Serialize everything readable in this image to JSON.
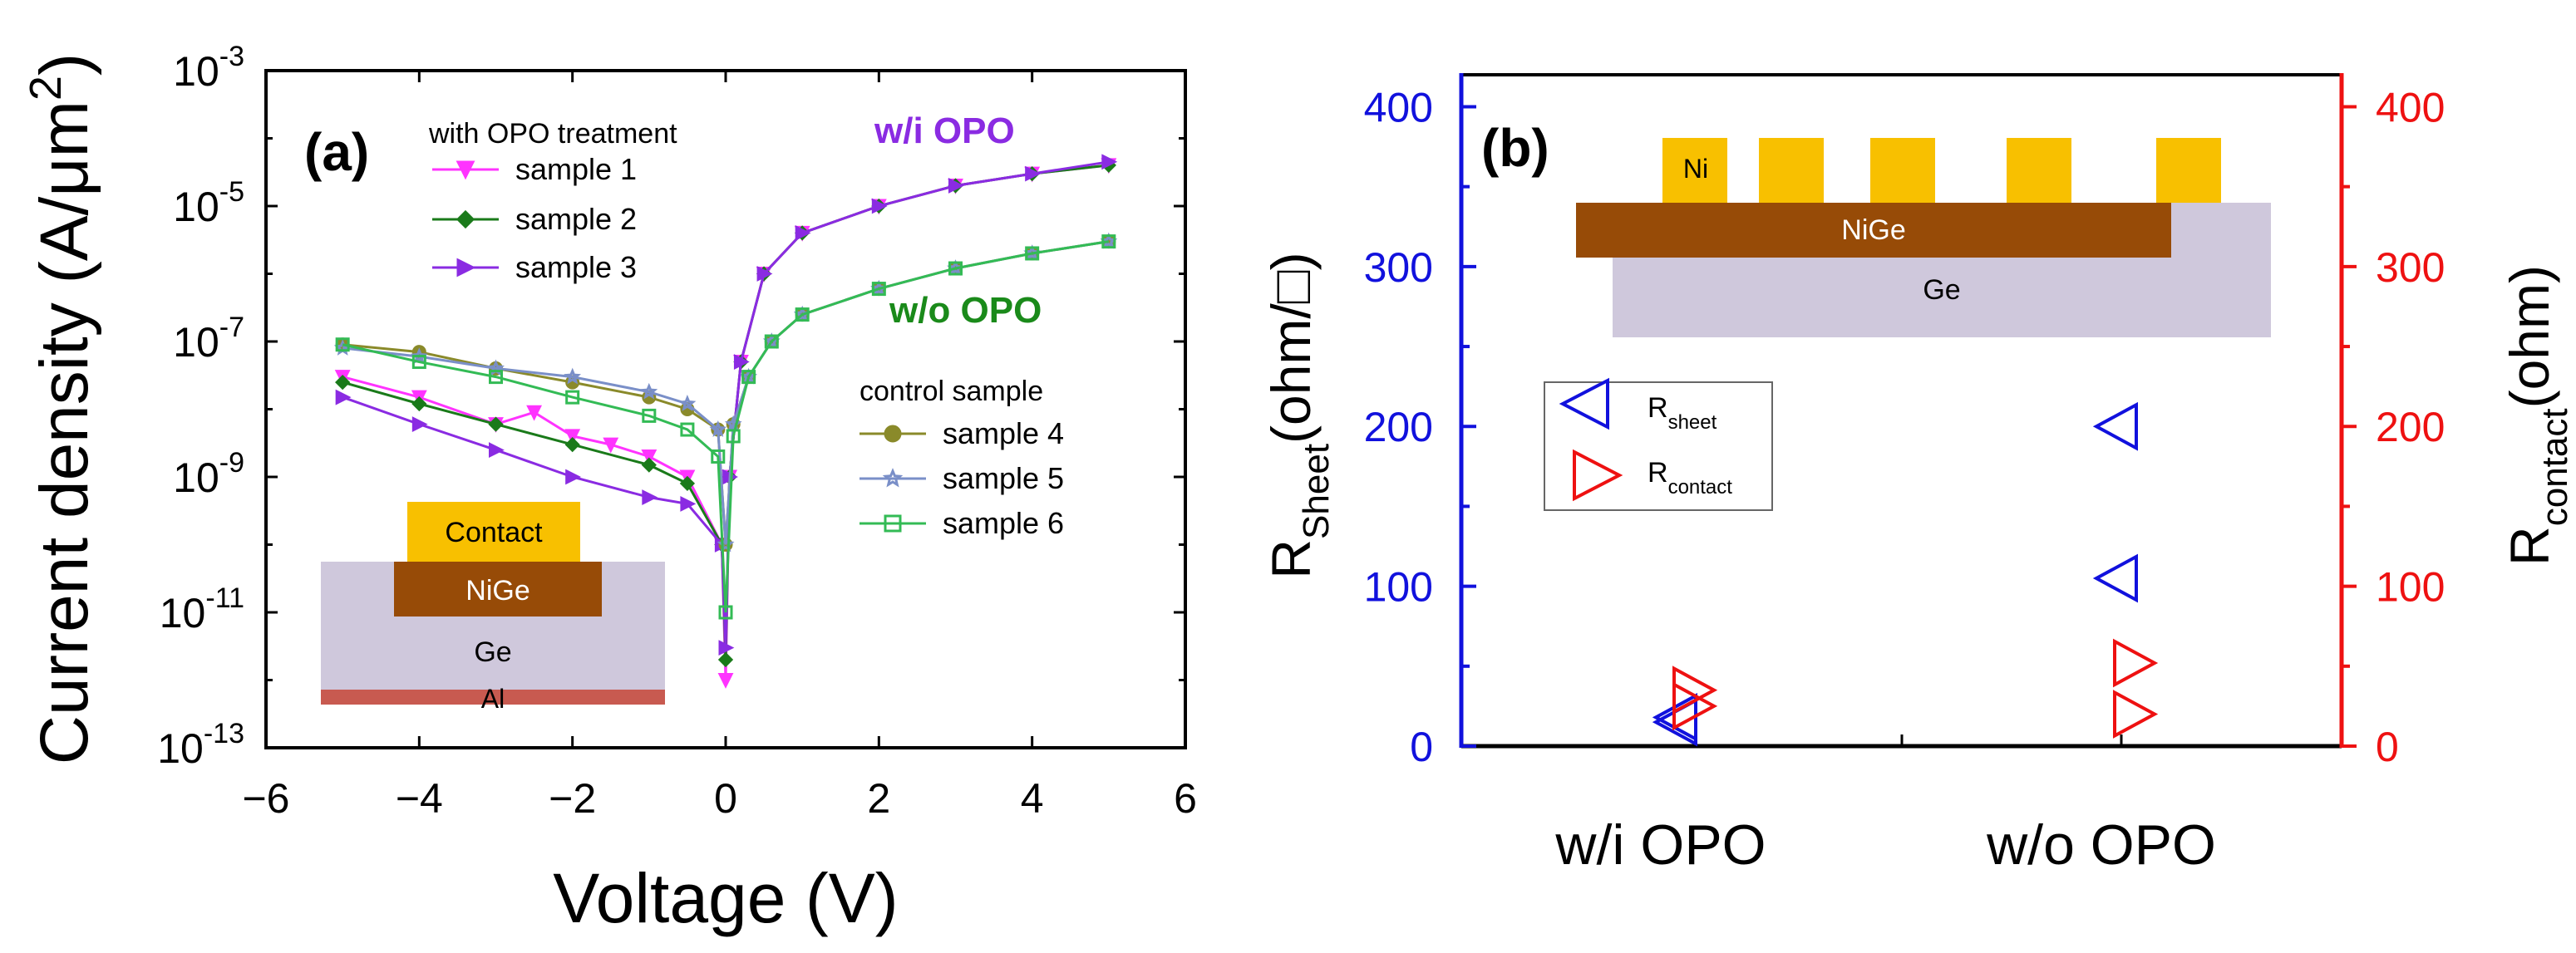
{
  "colors": {
    "axis": "#000000",
    "left_axis_b": "#1111dd",
    "right_axis_b": "#ee1111",
    "s1": "#ff33ff",
    "s2": "#1a7a1a",
    "s3": "#8a2be2",
    "s4": "#8a8a2a",
    "s5": "#7a8fc8",
    "s6": "#33bb55",
    "wi_label": "#8a2be2",
    "wo_label": "#1a8a1a",
    "contact_gold": "#f8c000",
    "nige_brown": "#974b07",
    "ge_lavender": "#cfc8dc",
    "al_red": "#c85a50"
  },
  "chart_data": [
    {
      "type": "line",
      "panel_label": "(a)",
      "title": "",
      "xlabel": "Voltage (V)",
      "ylabel": "Current density (A/μm",
      "ylabel_sup": "2",
      "ylabel_close": ")",
      "xscale": "linear",
      "yscale": "log",
      "xlim": [
        -6,
        6
      ],
      "ylim": [
        1e-13,
        0.001
      ],
      "x_ticks": [
        -6,
        -4,
        -2,
        0,
        2,
        4,
        6
      ],
      "x_tick_labels": [
        "−6",
        "−4",
        "−2",
        "0",
        "2",
        "4",
        "6"
      ],
      "y_ticks_exp": [
        -3,
        -5,
        -7,
        -9,
        -11,
        -13
      ],
      "y_tick_base": "10",
      "y_tick_exp_labels": [
        "-3",
        "-5",
        "-7",
        "-9",
        "-11",
        "-13"
      ],
      "legend_group_1": "with OPO treatment",
      "legend_group_2": "control sample",
      "annotations": {
        "wi": "w/i OPO",
        "wo": "w/o OPO"
      },
      "inset": {
        "contact": "Contact",
        "nige": "NiGe",
        "ge": "Ge",
        "al": "Al"
      },
      "series": [
        {
          "name": "sample 1",
          "marker": "triangle-down",
          "group": "with OPO treatment",
          "x": [
            -5,
            -4,
            -3,
            -2.5,
            -2,
            -1.5,
            -1,
            -0.5,
            -0.05,
            0,
            0.05,
            0.2,
            0.5,
            1,
            2,
            3,
            4,
            5
          ],
          "y": [
            3e-08,
            1.5e-08,
            6e-09,
            9e-09,
            4e-09,
            3e-09,
            2e-09,
            1e-09,
            1e-10,
            1e-12,
            1e-09,
            5e-08,
            1e-06,
            4e-06,
            1e-05,
            2e-05,
            3e-05,
            4e-05
          ]
        },
        {
          "name": "sample 2",
          "marker": "diamond",
          "group": "with OPO treatment",
          "x": [
            -5,
            -4,
            -3,
            -2,
            -1,
            -0.5,
            -0.05,
            0,
            0.05,
            0.2,
            0.5,
            1,
            2,
            3,
            4,
            5
          ],
          "y": [
            2.5e-08,
            1.2e-08,
            6e-09,
            3e-09,
            1.5e-09,
            8e-10,
            1e-10,
            2e-12,
            1e-09,
            5e-08,
            1e-06,
            4e-06,
            1e-05,
            2e-05,
            3e-05,
            4e-05
          ]
        },
        {
          "name": "sample 3",
          "marker": "triangle-right",
          "group": "with OPO treatment",
          "x": [
            -5,
            -4,
            -3,
            -2,
            -1,
            -0.5,
            -0.05,
            0,
            0.05,
            0.2,
            0.5,
            1,
            2,
            3,
            4,
            5
          ],
          "y": [
            1.5e-08,
            6e-09,
            2.5e-09,
            1e-09,
            5e-10,
            4e-10,
            1e-10,
            3e-12,
            1e-09,
            5e-08,
            1e-06,
            4e-06,
            1e-05,
            2e-05,
            3e-05,
            4.5e-05
          ]
        },
        {
          "name": "sample 4",
          "marker": "circle",
          "group": "control sample",
          "x": [
            -5,
            -4,
            -3,
            -2,
            -1,
            -0.5,
            -0.1,
            0,
            0.1,
            0.3,
            0.6,
            1,
            2,
            3,
            4,
            5
          ],
          "y": [
            9e-08,
            7e-08,
            4e-08,
            2.5e-08,
            1.5e-08,
            1e-08,
            5e-09,
            1e-10,
            6e-09,
            3e-08,
            1e-07,
            2.5e-07,
            6e-07,
            1.2e-06,
            2e-06,
            3e-06
          ]
        },
        {
          "name": "sample 5",
          "marker": "star",
          "group": "control sample",
          "x": [
            -5,
            -4,
            -3,
            -2,
            -1,
            -0.5,
            -0.1,
            0,
            0.1,
            0.3,
            0.6,
            1,
            2,
            3,
            4,
            5
          ],
          "y": [
            8e-08,
            6e-08,
            4e-08,
            3e-08,
            1.8e-08,
            1.2e-08,
            5e-09,
            1e-10,
            6e-09,
            3e-08,
            1e-07,
            2.5e-07,
            6e-07,
            1.2e-06,
            2e-06,
            3e-06
          ]
        },
        {
          "name": "sample 6",
          "marker": "square",
          "group": "control sample",
          "x": [
            -5,
            -4,
            -3,
            -2,
            -1,
            -0.5,
            -0.1,
            0,
            0.1,
            0.3,
            0.6,
            1,
            2,
            3,
            4,
            5
          ],
          "y": [
            9e-08,
            5e-08,
            3e-08,
            1.5e-08,
            8e-09,
            5e-09,
            2e-09,
            1e-11,
            4e-09,
            3e-08,
            1e-07,
            2.5e-07,
            6e-07,
            1.2e-06,
            2e-06,
            3e-06
          ]
        }
      ]
    },
    {
      "type": "scatter",
      "panel_label": "(b)",
      "title": "",
      "categories": [
        "w/i OPO",
        "w/o OPO"
      ],
      "ylabel_left": "R",
      "ylabel_left_sub": "Sheet",
      "ylabel_left_unit": "(ohm/□)",
      "ylabel_right": "R",
      "ylabel_right_sub": "contact",
      "ylabel_right_unit": "(ohm)",
      "ylim_left": [
        0,
        420
      ],
      "ylim_right": [
        0,
        420
      ],
      "y_ticks": [
        0,
        100,
        200,
        300,
        400
      ],
      "y_tick_labels": [
        "0",
        "100",
        "200",
        "300",
        "400"
      ],
      "legend": [
        {
          "name": "R",
          "sub": "sheet",
          "marker": "triangle-left",
          "axis": "left"
        },
        {
          "name": "R",
          "sub": "contact",
          "marker": "triangle-right",
          "axis": "right"
        }
      ],
      "inset": {
        "ni": "Ni",
        "nige": "NiGe",
        "ge": "Ge"
      },
      "series": [
        {
          "name": "R_sheet",
          "axis": "left",
          "marker": "triangle-left",
          "points": [
            {
              "category": "w/i OPO",
              "values": [
                15,
                18
              ]
            },
            {
              "category": "w/o OPO",
              "values": [
                200,
                105
              ]
            }
          ]
        },
        {
          "name": "R_contact",
          "axis": "right",
          "marker": "triangle-right",
          "points": [
            {
              "category": "w/i OPO",
              "values": [
                25,
                35
              ]
            },
            {
              "category": "w/o OPO",
              "values": [
                20,
                52
              ]
            }
          ]
        }
      ]
    }
  ]
}
